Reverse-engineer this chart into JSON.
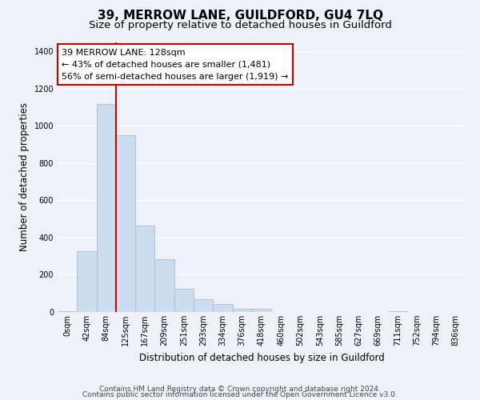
{
  "title": "39, MERROW LANE, GUILDFORD, GU4 7LQ",
  "subtitle": "Size of property relative to detached houses in Guildford",
  "xlabel": "Distribution of detached houses by size in Guildford",
  "ylabel": "Number of detached properties",
  "bar_labels": [
    "0sqm",
    "42sqm",
    "84sqm",
    "125sqm",
    "167sqm",
    "209sqm",
    "251sqm",
    "293sqm",
    "334sqm",
    "376sqm",
    "418sqm",
    "460sqm",
    "502sqm",
    "543sqm",
    "585sqm",
    "627sqm",
    "669sqm",
    "711sqm",
    "752sqm",
    "794sqm",
    "836sqm"
  ],
  "bar_values": [
    5,
    325,
    1115,
    950,
    465,
    283,
    125,
    70,
    42,
    18,
    18,
    0,
    0,
    0,
    0,
    0,
    0,
    5,
    0,
    0,
    0
  ],
  "bar_color": "#ccddf0",
  "bar_edge_color": "#aabbd0",
  "vline_x": 3,
  "vline_color": "#cc0000",
  "annotation_line1": "39 MERROW LANE: 128sqm",
  "annotation_line2": "← 43% of detached houses are smaller (1,481)",
  "annotation_line3": "56% of semi-detached houses are larger (1,919) →",
  "annotation_box_color": "#ffffff",
  "annotation_box_edge": "#cc0000",
  "ylim": [
    0,
    1450
  ],
  "yticks": [
    0,
    200,
    400,
    600,
    800,
    1000,
    1200,
    1400
  ],
  "footer1": "Contains HM Land Registry data © Crown copyright and database right 2024.",
  "footer2": "Contains public sector information licensed under the Open Government Licence v3.0.",
  "title_fontsize": 11,
  "subtitle_fontsize": 9.5,
  "axis_label_fontsize": 8.5,
  "tick_fontsize": 7,
  "annotation_fontsize": 8,
  "footer_fontsize": 6.5,
  "bg_color": "#eef2f8"
}
